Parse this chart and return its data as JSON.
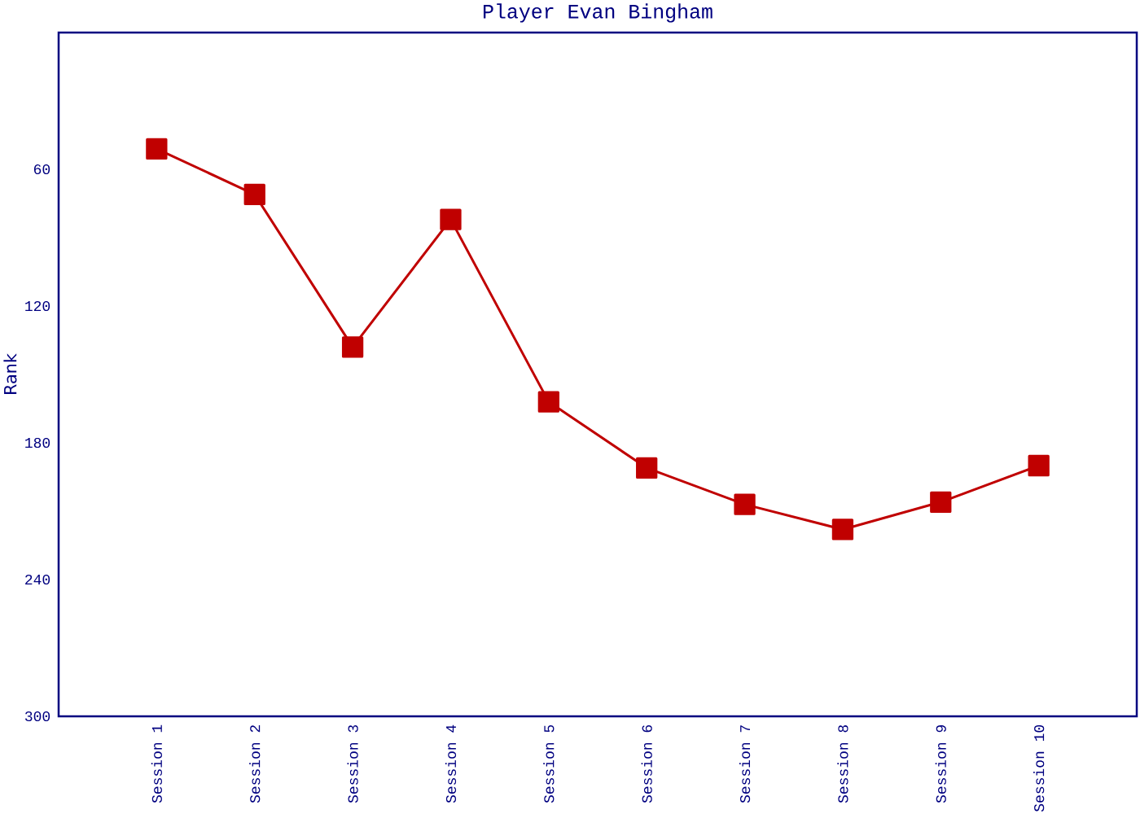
{
  "chart_data": {
    "type": "line",
    "title": "Player Evan Bingham",
    "ylabel": "Rank",
    "categories": [
      "Session 1",
      "Session 2",
      "Session 3",
      "Session 4",
      "Session 5",
      "Session 6",
      "Session 7",
      "Session 8",
      "Session 9",
      "Session 10"
    ],
    "series": [
      {
        "color": "#c00000",
        "values": [
          51,
          71,
          138,
          82,
          162,
          191,
          207,
          218,
          206,
          190
        ]
      }
    ],
    "ylim": [
      300,
      0
    ],
    "yticks": [
      60,
      120,
      180,
      240,
      300
    ],
    "marker": "square"
  }
}
